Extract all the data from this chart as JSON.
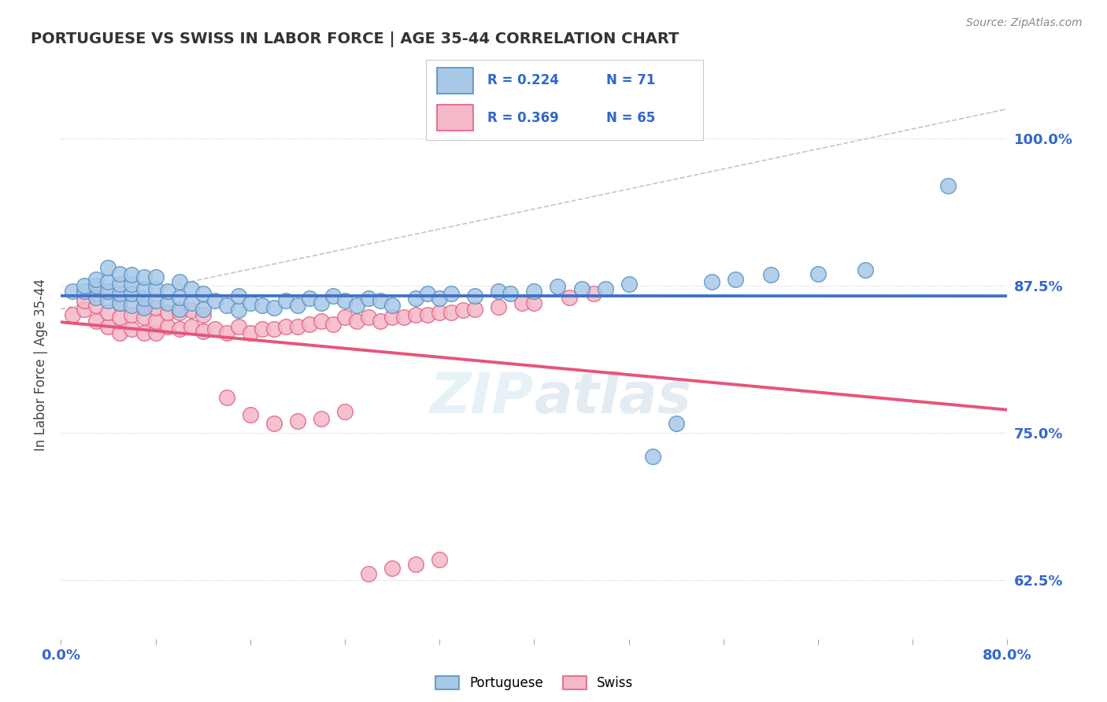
{
  "title": "PORTUGUESE VS SWISS IN LABOR FORCE | AGE 35-44 CORRELATION CHART",
  "source_text": "Source: ZipAtlas.com",
  "ylabel": "In Labor Force | Age 35-44",
  "xlim": [
    0.0,
    0.8
  ],
  "ylim": [
    0.575,
    1.04
  ],
  "yticks": [
    0.625,
    0.75,
    0.875,
    1.0
  ],
  "ytick_labels": [
    "62.5%",
    "75.0%",
    "87.5%",
    "100.0%"
  ],
  "xticks": [
    0.0,
    0.08,
    0.16,
    0.24,
    0.32,
    0.4,
    0.48,
    0.56,
    0.64,
    0.72,
    0.8
  ],
  "xtick_labels": [
    "0.0%",
    "",
    "",
    "",
    "",
    "",
    "",
    "",
    "",
    "",
    "80.0%"
  ],
  "blue_color": "#a8c8e8",
  "pink_color": "#f5b8c8",
  "blue_edge_color": "#5590c0",
  "pink_edge_color": "#e06080",
  "blue_line_color": "#4472c4",
  "pink_line_color": "#e8547a",
  "diag_line_color": "#b8b8b8",
  "legend_R_blue": "0.224",
  "legend_N_blue": "71",
  "legend_R_pink": "0.369",
  "legend_N_pink": "65",
  "blue_scatter_x": [
    0.01,
    0.02,
    0.02,
    0.03,
    0.03,
    0.03,
    0.04,
    0.04,
    0.04,
    0.04,
    0.05,
    0.05,
    0.05,
    0.05,
    0.06,
    0.06,
    0.06,
    0.06,
    0.07,
    0.07,
    0.07,
    0.07,
    0.08,
    0.08,
    0.08,
    0.09,
    0.09,
    0.1,
    0.1,
    0.1,
    0.11,
    0.11,
    0.12,
    0.12,
    0.13,
    0.14,
    0.15,
    0.15,
    0.16,
    0.17,
    0.18,
    0.19,
    0.2,
    0.21,
    0.22,
    0.23,
    0.24,
    0.25,
    0.26,
    0.27,
    0.28,
    0.3,
    0.31,
    0.32,
    0.33,
    0.35,
    0.37,
    0.38,
    0.4,
    0.42,
    0.44,
    0.46,
    0.48,
    0.5,
    0.52,
    0.55,
    0.57,
    0.6,
    0.64,
    0.68,
    0.75
  ],
  "blue_scatter_y": [
    0.87,
    0.87,
    0.875,
    0.865,
    0.875,
    0.88,
    0.862,
    0.87,
    0.878,
    0.89,
    0.86,
    0.868,
    0.876,
    0.885,
    0.858,
    0.868,
    0.876,
    0.884,
    0.856,
    0.864,
    0.872,
    0.882,
    0.862,
    0.872,
    0.882,
    0.86,
    0.87,
    0.855,
    0.865,
    0.878,
    0.86,
    0.872,
    0.855,
    0.868,
    0.862,
    0.858,
    0.854,
    0.866,
    0.86,
    0.858,
    0.856,
    0.862,
    0.858,
    0.864,
    0.86,
    0.866,
    0.862,
    0.858,
    0.864,
    0.862,
    0.858,
    0.864,
    0.868,
    0.864,
    0.868,
    0.866,
    0.87,
    0.868,
    0.87,
    0.874,
    0.872,
    0.872,
    0.876,
    0.73,
    0.758,
    0.878,
    0.88,
    0.884,
    0.885,
    0.888,
    0.96
  ],
  "pink_scatter_x": [
    0.01,
    0.02,
    0.02,
    0.03,
    0.03,
    0.03,
    0.04,
    0.04,
    0.05,
    0.05,
    0.05,
    0.06,
    0.06,
    0.07,
    0.07,
    0.07,
    0.08,
    0.08,
    0.08,
    0.09,
    0.09,
    0.1,
    0.1,
    0.11,
    0.11,
    0.12,
    0.12,
    0.13,
    0.14,
    0.15,
    0.16,
    0.17,
    0.18,
    0.19,
    0.2,
    0.21,
    0.22,
    0.23,
    0.24,
    0.25,
    0.26,
    0.27,
    0.28,
    0.29,
    0.3,
    0.31,
    0.32,
    0.33,
    0.34,
    0.35,
    0.37,
    0.39,
    0.4,
    0.43,
    0.45,
    0.14,
    0.16,
    0.18,
    0.2,
    0.22,
    0.24,
    0.26,
    0.28,
    0.3,
    0.32
  ],
  "pink_scatter_y": [
    0.85,
    0.855,
    0.862,
    0.845,
    0.858,
    0.868,
    0.84,
    0.852,
    0.835,
    0.848,
    0.86,
    0.838,
    0.85,
    0.835,
    0.848,
    0.858,
    0.835,
    0.845,
    0.856,
    0.84,
    0.852,
    0.838,
    0.852,
    0.84,
    0.854,
    0.836,
    0.85,
    0.838,
    0.835,
    0.84,
    0.835,
    0.838,
    0.838,
    0.84,
    0.84,
    0.842,
    0.845,
    0.842,
    0.848,
    0.845,
    0.848,
    0.845,
    0.848,
    0.848,
    0.85,
    0.85,
    0.852,
    0.852,
    0.854,
    0.855,
    0.857,
    0.86,
    0.86,
    0.865,
    0.868,
    0.78,
    0.765,
    0.758,
    0.76,
    0.762,
    0.768,
    0.63,
    0.635,
    0.638,
    0.642
  ]
}
